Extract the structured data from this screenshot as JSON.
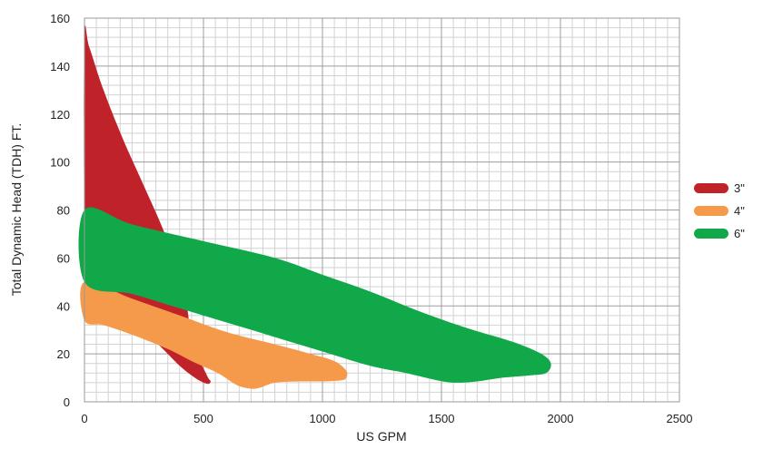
{
  "chart_data": {
    "type": "area",
    "xlabel": "US GPM",
    "ylabel": "Total Dynamic Head (TDH) FT.",
    "xlim": [
      0,
      2500
    ],
    "ylim": [
      0,
      160
    ],
    "x_ticks": [
      "0",
      "500",
      "1000",
      "1500",
      "2000",
      "2500"
    ],
    "y_ticks": [
      "0",
      "20",
      "40",
      "60",
      "80",
      "100",
      "120",
      "140",
      "160"
    ],
    "grid": true,
    "legend_position": "right",
    "series": [
      {
        "name": "3\"",
        "color": "#c0222a",
        "region": [
          [
            0,
            152
          ],
          [
            20,
            148
          ],
          [
            80,
            130
          ],
          [
            160,
            110
          ],
          [
            250,
            90
          ],
          [
            330,
            72
          ],
          [
            380,
            58
          ],
          [
            410,
            48
          ],
          [
            430,
            40
          ],
          [
            440,
            33
          ],
          [
            450,
            27
          ],
          [
            470,
            20
          ],
          [
            500,
            14
          ],
          [
            520,
            10
          ],
          [
            530,
            8.5
          ],
          [
            520,
            7.5
          ],
          [
            490,
            8.5
          ],
          [
            450,
            11
          ],
          [
            400,
            15
          ],
          [
            340,
            21
          ],
          [
            270,
            28
          ],
          [
            170,
            38
          ],
          [
            80,
            50
          ],
          [
            20,
            62
          ],
          [
            0,
            78
          ]
        ]
      },
      {
        "name": "4\"",
        "color": "#f5994b",
        "region": [
          [
            0,
            50
          ],
          [
            200,
            43
          ],
          [
            400,
            36
          ],
          [
            600,
            29
          ],
          [
            800,
            24
          ],
          [
            950,
            20
          ],
          [
            1050,
            17
          ],
          [
            1100,
            13
          ],
          [
            1100,
            10
          ],
          [
            1080,
            9
          ],
          [
            1000,
            8.5
          ],
          [
            900,
            8.5
          ],
          [
            800,
            8
          ],
          [
            740,
            6
          ],
          [
            700,
            5.5
          ],
          [
            640,
            7
          ],
          [
            560,
            12
          ],
          [
            450,
            17
          ],
          [
            350,
            22
          ],
          [
            200,
            28
          ],
          [
            80,
            32
          ],
          [
            0,
            34
          ]
        ]
      },
      {
        "name": "6\"",
        "color": "#11a84a",
        "region": [
          [
            0,
            80
          ],
          [
            200,
            74
          ],
          [
            500,
            67
          ],
          [
            800,
            60
          ],
          [
            1000,
            53
          ],
          [
            1200,
            46
          ],
          [
            1400,
            38
          ],
          [
            1600,
            31
          ],
          [
            1800,
            25
          ],
          [
            1920,
            20
          ],
          [
            1960,
            16
          ],
          [
            1940,
            12
          ],
          [
            1870,
            11
          ],
          [
            1750,
            10
          ],
          [
            1650,
            8.5
          ],
          [
            1560,
            8
          ],
          [
            1480,
            9
          ],
          [
            1350,
            12
          ],
          [
            1200,
            15
          ],
          [
            1000,
            21
          ],
          [
            800,
            27
          ],
          [
            600,
            33
          ],
          [
            400,
            39
          ],
          [
            200,
            45
          ],
          [
            0,
            50
          ]
        ]
      }
    ]
  }
}
